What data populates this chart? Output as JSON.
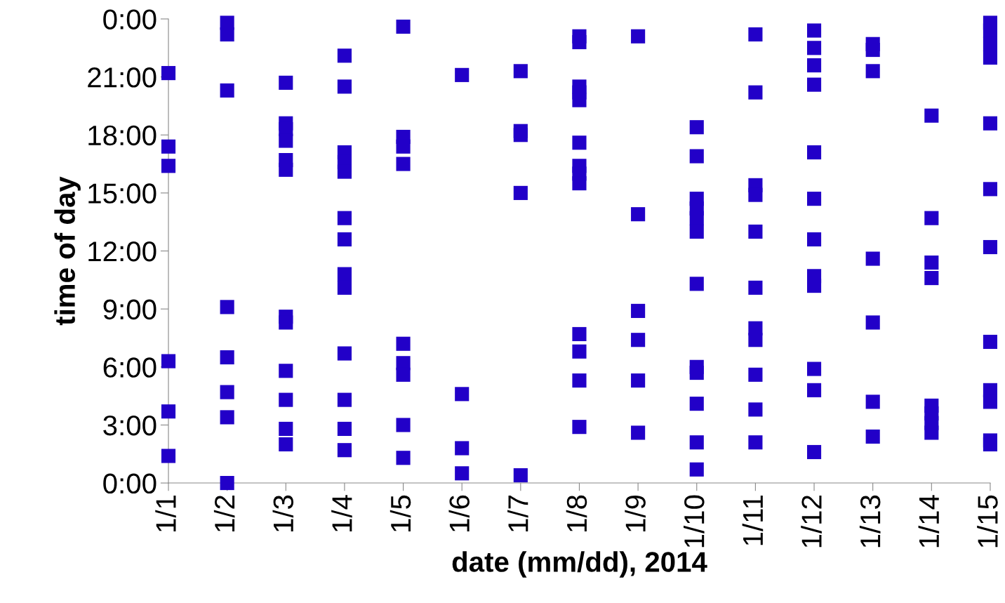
{
  "chart_data": {
    "type": "scatter",
    "xlabel": "date (mm/dd), 2014",
    "ylabel": "time of day",
    "marker": "square",
    "grid": false,
    "legend": false,
    "xlim": [
      "2014-01-01",
      "2014-01-15"
    ],
    "xticks": [
      {
        "value": "2014-01-01",
        "label": "1/1"
      },
      {
        "value": "2014-01-02",
        "label": "1/2"
      },
      {
        "value": "2014-01-03",
        "label": "1/3"
      },
      {
        "value": "2014-01-04",
        "label": "1/4"
      },
      {
        "value": "2014-01-05",
        "label": "1/5"
      },
      {
        "value": "2014-01-06",
        "label": "1/6"
      },
      {
        "value": "2014-01-07",
        "label": "1/7"
      },
      {
        "value": "2014-01-08",
        "label": "1/8"
      },
      {
        "value": "2014-01-09",
        "label": "1/9"
      },
      {
        "value": "2014-01-10",
        "label": "1/10"
      },
      {
        "value": "2014-01-11",
        "label": "1/11"
      },
      {
        "value": "2014-01-12",
        "label": "1/12"
      },
      {
        "value": "2014-01-13",
        "label": "1/13"
      },
      {
        "value": "2014-01-14",
        "label": "1/14"
      },
      {
        "value": "2014-01-15",
        "label": "1/15"
      }
    ],
    "ylim": [
      0,
      24
    ],
    "yticks": [
      {
        "value": 0,
        "label": "0:00"
      },
      {
        "value": 3,
        "label": "3:00"
      },
      {
        "value": 6,
        "label": "6:00"
      },
      {
        "value": 9,
        "label": "9:00"
      },
      {
        "value": 12,
        "label": "12:00"
      },
      {
        "value": 15,
        "label": "15:00"
      },
      {
        "value": 18,
        "label": "18:00"
      },
      {
        "value": 21,
        "label": "21:00"
      },
      {
        "value": 24,
        "label": "0:00"
      }
    ],
    "series": [
      {
        "color": "#2200c8",
        "x": [
          "2014-01-01",
          "2014-01-01",
          "2014-01-01",
          "2014-01-01",
          "2014-01-01",
          "2014-01-01",
          "2014-01-02",
          "2014-01-02",
          "2014-01-02",
          "2014-01-02",
          "2014-01-02",
          "2014-01-02",
          "2014-01-02",
          "2014-01-02",
          "2014-01-03",
          "2014-01-03",
          "2014-01-03",
          "2014-01-03",
          "2014-01-03",
          "2014-01-03",
          "2014-01-03",
          "2014-01-03",
          "2014-01-03",
          "2014-01-03",
          "2014-01-03",
          "2014-01-03",
          "2014-01-04",
          "2014-01-04",
          "2014-01-04",
          "2014-01-04",
          "2014-01-04",
          "2014-01-04",
          "2014-01-04",
          "2014-01-04",
          "2014-01-04",
          "2014-01-04",
          "2014-01-04",
          "2014-01-04",
          "2014-01-04",
          "2014-01-05",
          "2014-01-05",
          "2014-01-05",
          "2014-01-05",
          "2014-01-05",
          "2014-01-05",
          "2014-01-05",
          "2014-01-05",
          "2014-01-05",
          "2014-01-06",
          "2014-01-06",
          "2014-01-06",
          "2014-01-06",
          "2014-01-07",
          "2014-01-07",
          "2014-01-07",
          "2014-01-07",
          "2014-01-07",
          "2014-01-08",
          "2014-01-08",
          "2014-01-08",
          "2014-01-08",
          "2014-01-08",
          "2014-01-08",
          "2014-01-08",
          "2014-01-08",
          "2014-01-08",
          "2014-01-08",
          "2014-01-08",
          "2014-01-08",
          "2014-01-08",
          "2014-01-09",
          "2014-01-09",
          "2014-01-09",
          "2014-01-09",
          "2014-01-09",
          "2014-01-09",
          "2014-01-10",
          "2014-01-10",
          "2014-01-10",
          "2014-01-10",
          "2014-01-10",
          "2014-01-10",
          "2014-01-10",
          "2014-01-10",
          "2014-01-10",
          "2014-01-10",
          "2014-01-10",
          "2014-01-10",
          "2014-01-11",
          "2014-01-11",
          "2014-01-11",
          "2014-01-11",
          "2014-01-11",
          "2014-01-11",
          "2014-01-11",
          "2014-01-11",
          "2014-01-11",
          "2014-01-11",
          "2014-01-11",
          "2014-01-12",
          "2014-01-12",
          "2014-01-12",
          "2014-01-12",
          "2014-01-12",
          "2014-01-12",
          "2014-01-12",
          "2014-01-12",
          "2014-01-12",
          "2014-01-12",
          "2014-01-12",
          "2014-01-12",
          "2014-01-13",
          "2014-01-13",
          "2014-01-13",
          "2014-01-13",
          "2014-01-13",
          "2014-01-13",
          "2014-01-13",
          "2014-01-14",
          "2014-01-14",
          "2014-01-14",
          "2014-01-14",
          "2014-01-14",
          "2014-01-14",
          "2014-01-14",
          "2014-01-14",
          "2014-01-15",
          "2014-01-15",
          "2014-01-15",
          "2014-01-15",
          "2014-01-15",
          "2014-01-15",
          "2014-01-15",
          "2014-01-15",
          "2014-01-15",
          "2014-01-15",
          "2014-01-15",
          "2014-01-15"
        ],
        "values": [
          21.2,
          17.4,
          16.4,
          6.3,
          3.7,
          1.4,
          23.8,
          23.2,
          20.3,
          9.1,
          6.5,
          4.7,
          3.4,
          0.0,
          20.7,
          18.6,
          18.3,
          17.7,
          16.7,
          16.2,
          8.6,
          8.3,
          5.8,
          4.3,
          2.8,
          2.0,
          22.1,
          20.5,
          17.1,
          16.6,
          16.1,
          13.7,
          12.6,
          10.8,
          10.1,
          6.7,
          4.3,
          2.8,
          1.7,
          23.6,
          17.9,
          17.4,
          16.5,
          7.2,
          6.2,
          5.6,
          3.0,
          1.3,
          21.1,
          4.6,
          1.8,
          0.5,
          21.3,
          18.2,
          18.0,
          15.0,
          0.4,
          23.1,
          22.8,
          20.5,
          20.2,
          19.8,
          17.6,
          16.4,
          16.0,
          15.5,
          7.7,
          6.8,
          5.3,
          2.9,
          23.1,
          13.9,
          8.9,
          7.4,
          5.3,
          2.6,
          18.4,
          16.9,
          14.7,
          14.2,
          13.7,
          13.0,
          10.3,
          6.0,
          5.7,
          4.1,
          2.1,
          0.7,
          23.2,
          20.2,
          15.4,
          14.9,
          13.0,
          10.1,
          8.0,
          7.4,
          5.6,
          3.8,
          2.1,
          23.4,
          22.5,
          21.6,
          20.6,
          17.1,
          14.7,
          12.6,
          10.7,
          10.2,
          5.9,
          4.8,
          1.6,
          22.7,
          22.4,
          21.3,
          11.6,
          8.3,
          4.2,
          2.4,
          19.0,
          13.7,
          11.4,
          10.6,
          4.0,
          3.6,
          3.1,
          2.6,
          23.8,
          23.4,
          22.7,
          22.0,
          18.6,
          15.2,
          12.2,
          7.3,
          4.8,
          4.2,
          2.2,
          2.0
        ]
      }
    ]
  }
}
